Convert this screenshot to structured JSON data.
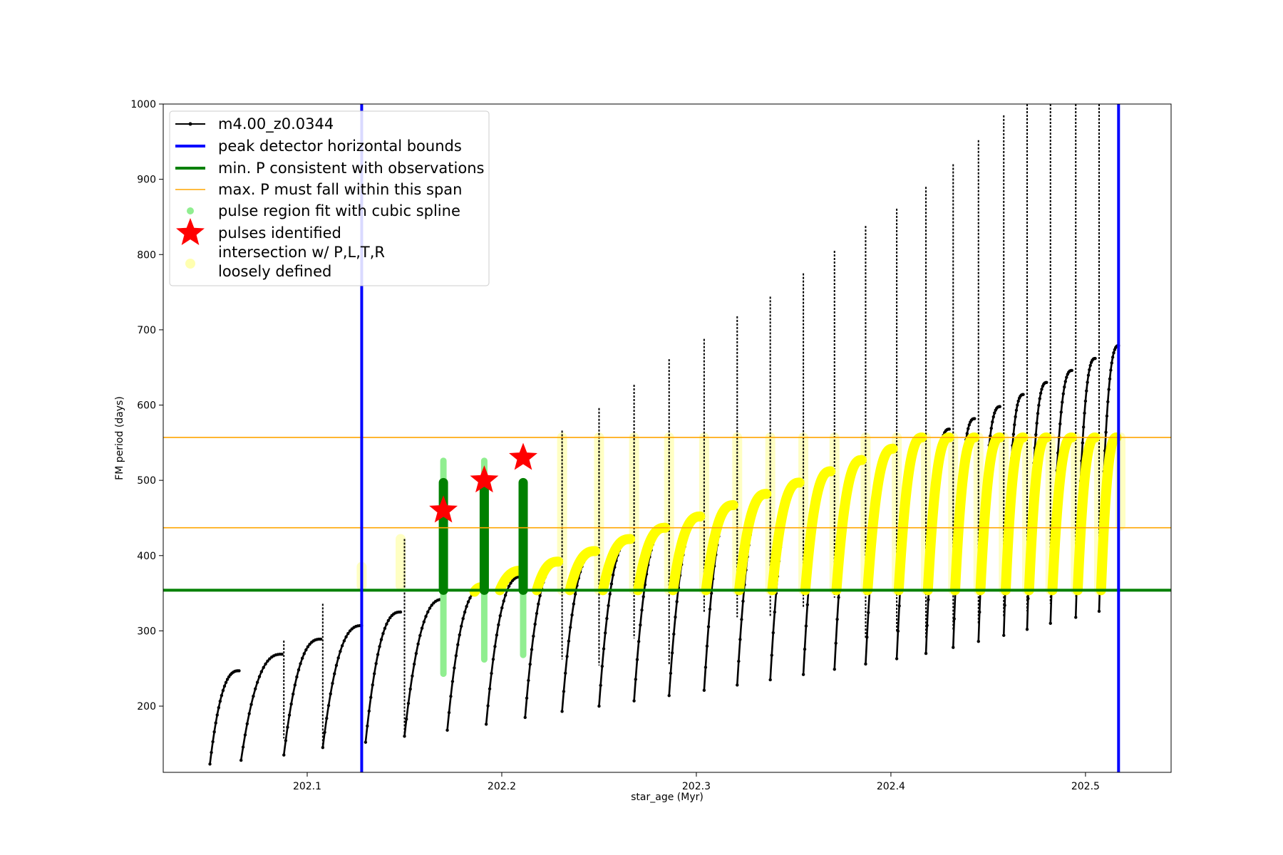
{
  "chart_data": {
    "type": "line",
    "xlabel": "star_age (Myr)",
    "ylabel": "FM period (days)",
    "xlim": [
      202.026,
      202.544
    ],
    "ylim": [
      112,
      1000
    ],
    "xticks": [
      202.1,
      202.2,
      202.3,
      202.4,
      202.5
    ],
    "xtick_labels": [
      "202.1",
      "202.2",
      "202.3",
      "202.4",
      "202.5"
    ],
    "yticks": [
      200,
      300,
      400,
      500,
      600,
      700,
      800,
      900,
      1000
    ],
    "ytick_labels": [
      "200",
      "300",
      "400",
      "500",
      "600",
      "700",
      "800",
      "900",
      "1000"
    ],
    "grid": false,
    "legend_position": "top-left",
    "track": {
      "name": "m4.00_z0.0344",
      "color": "#000000",
      "segments": [
        {
          "x_start": 202.05,
          "x_end": 202.065,
          "p_start": 123,
          "p_end": 247,
          "spike_top": 0,
          "spike_bottom": 0
        },
        {
          "x_start": 202.066,
          "x_end": 202.087,
          "p_start": 128,
          "p_end": 269,
          "spike_top": 0,
          "spike_bottom": 0
        },
        {
          "x_start": 202.088,
          "x_end": 202.107,
          "p_start": 135,
          "p_end": 289,
          "spike_top": 287,
          "spike_bottom": 157
        },
        {
          "x_start": 202.108,
          "x_end": 202.128,
          "p_start": 145,
          "p_end": 307,
          "spike_top": 336,
          "spike_bottom": 145
        },
        {
          "x_start": 202.13,
          "x_end": 202.148,
          "p_start": 152,
          "p_end": 325,
          "spike_top": 0,
          "spike_bottom": 0
        },
        {
          "x_start": 202.15,
          "x_end": 202.17,
          "p_start": 160,
          "p_end": 342,
          "spike_top": 422,
          "spike_bottom": 160
        },
        {
          "x_start": 202.172,
          "x_end": 202.19,
          "p_start": 168,
          "p_end": 356,
          "spike_top": 0,
          "spike_bottom": 0
        },
        {
          "x_start": 202.192,
          "x_end": 202.21,
          "p_start": 176,
          "p_end": 372,
          "spike_top": 0,
          "spike_bottom": 0
        },
        {
          "x_start": 202.212,
          "x_end": 202.229,
          "p_start": 185,
          "p_end": 390,
          "spike_top": 0,
          "spike_bottom": 0
        },
        {
          "x_start": 202.231,
          "x_end": 202.248,
          "p_start": 193,
          "p_end": 405,
          "spike_top": 566,
          "spike_bottom": 262
        },
        {
          "x_start": 202.25,
          "x_end": 202.266,
          "p_start": 200,
          "p_end": 421,
          "spike_top": 596,
          "spike_bottom": 254
        },
        {
          "x_start": 202.268,
          "x_end": 202.284,
          "p_start": 207,
          "p_end": 436,
          "spike_top": 627,
          "spike_bottom": 290
        },
        {
          "x_start": 202.286,
          "x_end": 202.302,
          "p_start": 214,
          "p_end": 451,
          "spike_top": 661,
          "spike_bottom": 255
        },
        {
          "x_start": 202.304,
          "x_end": 202.319,
          "p_start": 221,
          "p_end": 466,
          "spike_top": 688,
          "spike_bottom": 325
        },
        {
          "x_start": 202.321,
          "x_end": 202.336,
          "p_start": 228,
          "p_end": 481,
          "spike_top": 718,
          "spike_bottom": 318
        },
        {
          "x_start": 202.338,
          "x_end": 202.353,
          "p_start": 235,
          "p_end": 496,
          "spike_top": 744,
          "spike_bottom": 318
        },
        {
          "x_start": 202.355,
          "x_end": 202.369,
          "p_start": 242,
          "p_end": 511,
          "spike_top": 775,
          "spike_bottom": 330
        },
        {
          "x_start": 202.371,
          "x_end": 202.385,
          "p_start": 249,
          "p_end": 526,
          "spike_top": 805,
          "spike_bottom": 344
        },
        {
          "x_start": 202.387,
          "x_end": 202.401,
          "p_start": 256,
          "p_end": 541,
          "spike_top": 838,
          "spike_bottom": 290
        },
        {
          "x_start": 202.403,
          "x_end": 202.416,
          "p_start": 263,
          "p_end": 556,
          "spike_top": 861,
          "spike_bottom": 299
        },
        {
          "x_start": 202.418,
          "x_end": 202.43,
          "p_start": 270,
          "p_end": 568,
          "spike_top": 890,
          "spike_bottom": 290
        },
        {
          "x_start": 202.432,
          "x_end": 202.443,
          "p_start": 278,
          "p_end": 582,
          "spike_top": 920,
          "spike_bottom": 300
        },
        {
          "x_start": 202.445,
          "x_end": 202.456,
          "p_start": 286,
          "p_end": 598,
          "spike_top": 952,
          "spike_bottom": 310
        },
        {
          "x_start": 202.458,
          "x_end": 202.468,
          "p_start": 294,
          "p_end": 614,
          "spike_top": 985,
          "spike_bottom": 318
        },
        {
          "x_start": 202.47,
          "x_end": 202.48,
          "p_start": 302,
          "p_end": 630,
          "spike_top": 1000,
          "spike_bottom": 326
        },
        {
          "x_start": 202.482,
          "x_end": 202.493,
          "p_start": 310,
          "p_end": 646,
          "spike_top": 1000,
          "spike_bottom": 336
        },
        {
          "x_start": 202.495,
          "x_end": 202.505,
          "p_start": 318,
          "p_end": 662,
          "spike_top": 1000,
          "spike_bottom": 346
        },
        {
          "x_start": 202.507,
          "x_end": 202.517,
          "p_start": 326,
          "p_end": 679,
          "spike_top": 1000,
          "spike_bottom": 355
        }
      ]
    },
    "vertical_bounds": {
      "name": "peak detector horizontal bounds",
      "color": "#0000ff",
      "x": [
        202.128,
        202.517
      ]
    },
    "min_period_line": {
      "name": "min. P consistent with observations",
      "color": "#008000",
      "y": 354
    },
    "max_period_span": {
      "name": "max. P must fall within this span",
      "color": "#ffa500",
      "y": [
        437,
        557
      ]
    },
    "pulse_regions": {
      "name": "pulse region fit with cubic spline",
      "color": "#90ee90",
      "dark_color": "#008000",
      "regions": [
        {
          "x": 202.17,
          "p_low": 243,
          "p_high": 526,
          "fit_low": 354,
          "fit_high": 497
        },
        {
          "x": 202.191,
          "p_low": 262,
          "p_high": 526,
          "fit_low": 354,
          "fit_high": 497
        },
        {
          "x": 202.211,
          "p_low": 268,
          "p_high": 498,
          "fit_low": 354,
          "fit_high": 497
        }
      ]
    },
    "pulses_identified": {
      "name": "pulses identified",
      "color": "#ff0000",
      "points": [
        {
          "x": 202.17,
          "y": 460
        },
        {
          "x": 202.191,
          "y": 500
        },
        {
          "x": 202.211,
          "y": 530
        }
      ]
    },
    "intersection": {
      "name": "intersection w/ P,L,T,R\nloosely defined",
      "color": "#ffff00",
      "faint_color": "#ffffb0",
      "arches": [
        {
          "x_start": 202.186,
          "x_end": 202.19,
          "p_start": 352,
          "p_end": 358
        },
        {
          "x_start": 202.199,
          "x_end": 202.21,
          "p_start": 354,
          "p_end": 380
        },
        {
          "x_start": 202.218,
          "x_end": 202.229,
          "p_start": 354,
          "p_end": 392
        },
        {
          "x_start": 202.235,
          "x_end": 202.248,
          "p_start": 354,
          "p_end": 406
        },
        {
          "x_start": 202.252,
          "x_end": 202.266,
          "p_start": 354,
          "p_end": 422
        },
        {
          "x_start": 202.27,
          "x_end": 202.284,
          "p_start": 354,
          "p_end": 437
        },
        {
          "x_start": 202.288,
          "x_end": 202.302,
          "p_start": 354,
          "p_end": 452
        },
        {
          "x_start": 202.305,
          "x_end": 202.319,
          "p_start": 354,
          "p_end": 467
        },
        {
          "x_start": 202.322,
          "x_end": 202.336,
          "p_start": 354,
          "p_end": 482
        },
        {
          "x_start": 202.339,
          "x_end": 202.353,
          "p_start": 354,
          "p_end": 497
        },
        {
          "x_start": 202.356,
          "x_end": 202.369,
          "p_start": 354,
          "p_end": 512
        },
        {
          "x_start": 202.372,
          "x_end": 202.385,
          "p_start": 354,
          "p_end": 527
        },
        {
          "x_start": 202.388,
          "x_end": 202.401,
          "p_start": 354,
          "p_end": 542
        },
        {
          "x_start": 202.404,
          "x_end": 202.416,
          "p_start": 354,
          "p_end": 557
        },
        {
          "x_start": 202.419,
          "x_end": 202.43,
          "p_start": 354,
          "p_end": 557
        },
        {
          "x_start": 202.433,
          "x_end": 202.443,
          "p_start": 354,
          "p_end": 557
        },
        {
          "x_start": 202.446,
          "x_end": 202.456,
          "p_start": 354,
          "p_end": 557
        },
        {
          "x_start": 202.459,
          "x_end": 202.468,
          "p_start": 354,
          "p_end": 557
        },
        {
          "x_start": 202.471,
          "x_end": 202.48,
          "p_start": 354,
          "p_end": 557
        },
        {
          "x_start": 202.483,
          "x_end": 202.493,
          "p_start": 354,
          "p_end": 557
        },
        {
          "x_start": 202.496,
          "x_end": 202.505,
          "p_start": 354,
          "p_end": 557
        },
        {
          "x_start": 202.508,
          "x_end": 202.516,
          "p_start": 354,
          "p_end": 557
        }
      ],
      "spike_columns": [
        {
          "x": 202.128,
          "p_low": 360,
          "p_high": 385
        },
        {
          "x": 202.148,
          "p_low": 360,
          "p_high": 422
        },
        {
          "x": 202.231,
          "p_low": 354,
          "p_high": 557
        },
        {
          "x": 202.25,
          "p_low": 354,
          "p_high": 557
        },
        {
          "x": 202.268,
          "p_low": 354,
          "p_high": 557
        },
        {
          "x": 202.286,
          "p_low": 354,
          "p_high": 557
        },
        {
          "x": 202.304,
          "p_low": 354,
          "p_high": 557
        },
        {
          "x": 202.321,
          "p_low": 354,
          "p_high": 557
        },
        {
          "x": 202.338,
          "p_low": 354,
          "p_high": 557
        },
        {
          "x": 202.355,
          "p_low": 354,
          "p_high": 557
        },
        {
          "x": 202.371,
          "p_low": 354,
          "p_high": 557
        },
        {
          "x": 202.387,
          "p_low": 354,
          "p_high": 557
        },
        {
          "x": 202.403,
          "p_low": 354,
          "p_high": 557
        },
        {
          "x": 202.418,
          "p_low": 354,
          "p_high": 557
        },
        {
          "x": 202.432,
          "p_low": 354,
          "p_high": 557
        },
        {
          "x": 202.445,
          "p_low": 354,
          "p_high": 557
        },
        {
          "x": 202.458,
          "p_low": 354,
          "p_high": 557
        },
        {
          "x": 202.47,
          "p_low": 354,
          "p_high": 557
        },
        {
          "x": 202.482,
          "p_low": 354,
          "p_high": 557
        },
        {
          "x": 202.495,
          "p_low": 354,
          "p_high": 557
        },
        {
          "x": 202.507,
          "p_low": 354,
          "p_high": 557
        },
        {
          "x": 202.518,
          "p_low": 440,
          "p_high": 557
        }
      ]
    },
    "legend": [
      {
        "label": "m4.00_z0.0344",
        "kind": "line-marker",
        "color": "#000000"
      },
      {
        "label": "peak detector horizontal bounds",
        "kind": "line",
        "color": "#0000ff"
      },
      {
        "label": "min. P consistent with observations",
        "kind": "line",
        "color": "#008000"
      },
      {
        "label": "max. P must fall within this span",
        "kind": "thin-line",
        "color": "#ffa500"
      },
      {
        "label": "pulse region fit with cubic spline",
        "kind": "dot",
        "color": "#90ee90"
      },
      {
        "label": "pulses identified",
        "kind": "star",
        "color": "#ff0000"
      },
      {
        "label": "intersection w/ P,L,T,R",
        "label2": "loosely defined",
        "kind": "dot",
        "color": "#ffffb0"
      }
    ]
  }
}
